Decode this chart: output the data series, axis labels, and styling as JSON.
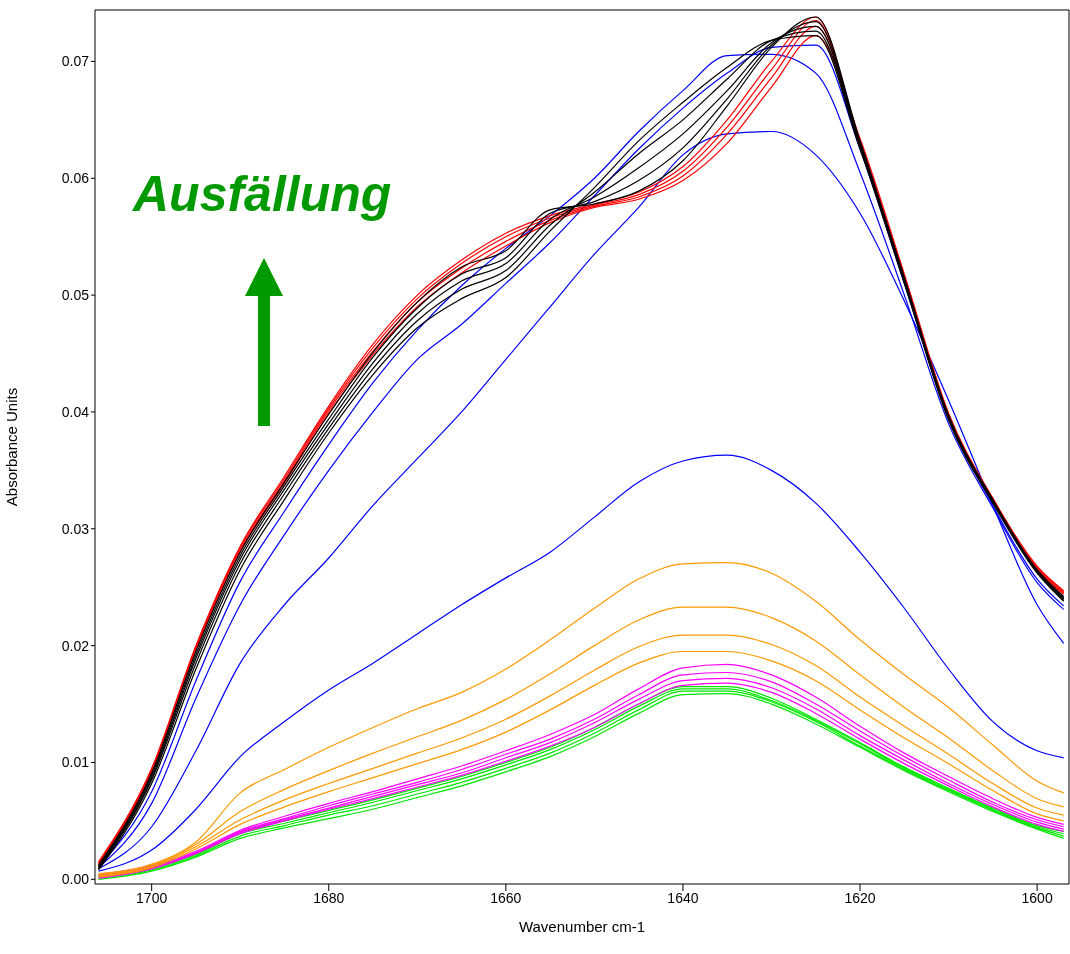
{
  "chart_data": {
    "type": "line",
    "xlabel": "Wavenumber cm-1",
    "ylabel": "Absorbance Units",
    "annotations": [
      "Ausfällung"
    ],
    "x": [
      1706,
      1700,
      1695,
      1690,
      1685,
      1680,
      1675,
      1670,
      1665,
      1660,
      1655,
      1650,
      1645,
      1640,
      1635,
      1630,
      1625,
      1620,
      1615,
      1610,
      1605,
      1600,
      1597
    ],
    "xlim": [
      1706.4,
      1596.4
    ],
    "xticks": [
      1700,
      1680,
      1660,
      1640,
      1620,
      1600
    ],
    "ylim": [
      -0.0004,
      0.0744
    ],
    "yticks": [
      {
        "value": 0,
        "label": "0.00"
      },
      {
        "value": 0.01,
        "label": "0.01"
      },
      {
        "value": 0.02,
        "label": "0.02"
      },
      {
        "value": 0.03,
        "label": "0.03"
      },
      {
        "value": 0.04,
        "label": "0.04"
      },
      {
        "value": 0.05,
        "label": "0.05"
      },
      {
        "value": 0.06,
        "label": "0.06"
      },
      {
        "value": 0.07,
        "label": "0.07"
      }
    ],
    "grid": false,
    "marker": "none",
    "line_style": "solid",
    "series": [
      {
        "color": "#00e600",
        "values": [
          0.0,
          0.0007,
          0.0019,
          0.0035,
          0.0044,
          0.0052,
          0.006,
          0.007,
          0.008,
          0.0092,
          0.0105,
          0.0122,
          0.0142,
          0.0158,
          0.0159,
          0.015,
          0.0133,
          0.0113,
          0.0093,
          0.0075,
          0.0058,
          0.0043,
          0.0035
        ]
      },
      {
        "color": "#00e600",
        "values": [
          0.0001,
          0.0008,
          0.002,
          0.0037,
          0.0046,
          0.0055,
          0.0063,
          0.0073,
          0.0083,
          0.0095,
          0.0108,
          0.0125,
          0.0145,
          0.0161,
          0.0161,
          0.0152,
          0.0135,
          0.0114,
          0.0094,
          0.0076,
          0.0059,
          0.0044,
          0.0037
        ]
      },
      {
        "color": "#00e600",
        "values": [
          0.0002,
          0.0009,
          0.0021,
          0.0039,
          0.0048,
          0.0057,
          0.0066,
          0.0076,
          0.0086,
          0.0098,
          0.0111,
          0.0128,
          0.0148,
          0.0163,
          0.0163,
          0.0153,
          0.0136,
          0.0116,
          0.0095,
          0.0077,
          0.006,
          0.0045,
          0.0039
        ]
      },
      {
        "color": "#00e600",
        "values": [
          0.0003,
          0.001,
          0.0022,
          0.004,
          0.005,
          0.0059,
          0.0068,
          0.0078,
          0.0088,
          0.01,
          0.0113,
          0.013,
          0.015,
          0.0165,
          0.0165,
          0.0155,
          0.0137,
          0.0117,
          0.0096,
          0.0078,
          0.0061,
          0.0046,
          0.0041
        ]
      },
      {
        "color": "#ff00ff",
        "values": [
          0.0001,
          0.0009,
          0.0022,
          0.0039,
          0.005,
          0.006,
          0.0069,
          0.0079,
          0.0089,
          0.0101,
          0.0114,
          0.013,
          0.015,
          0.0166,
          0.0168,
          0.016,
          0.0142,
          0.012,
          0.0099,
          0.008,
          0.0062,
          0.0047,
          0.0041
        ]
      },
      {
        "color": "#ff00ff",
        "values": [
          0.0002,
          0.001,
          0.0023,
          0.004,
          0.0051,
          0.0061,
          0.0071,
          0.0081,
          0.0091,
          0.0104,
          0.0117,
          0.0134,
          0.0154,
          0.017,
          0.0172,
          0.0164,
          0.0146,
          0.0123,
          0.0102,
          0.0082,
          0.0064,
          0.0049,
          0.0043
        ]
      },
      {
        "color": "#ff00ff",
        "values": [
          0.0003,
          0.0011,
          0.0023,
          0.0041,
          0.0052,
          0.0063,
          0.0073,
          0.0083,
          0.0094,
          0.0107,
          0.012,
          0.0137,
          0.0158,
          0.0175,
          0.0177,
          0.0169,
          0.015,
          0.0127,
          0.0105,
          0.0085,
          0.0066,
          0.0051,
          0.0045
        ]
      },
      {
        "color": "#ff00ff",
        "values": [
          0.0004,
          0.0012,
          0.0024,
          0.0042,
          0.0054,
          0.0065,
          0.0075,
          0.0086,
          0.0097,
          0.011,
          0.0124,
          0.0141,
          0.0163,
          0.0181,
          0.0184,
          0.0175,
          0.0156,
          0.0131,
          0.0108,
          0.0088,
          0.0069,
          0.0053,
          0.0047
        ]
      },
      {
        "color": "#ff9900",
        "values": [
          0.0002,
          0.001,
          0.0026,
          0.0047,
          0.0062,
          0.0075,
          0.0087,
          0.0099,
          0.0111,
          0.0126,
          0.0145,
          0.0166,
          0.0185,
          0.0195,
          0.0195,
          0.0187,
          0.017,
          0.0145,
          0.0121,
          0.0099,
          0.0076,
          0.0056,
          0.005
        ]
      },
      {
        "color": "#ff9900",
        "values": [
          0.0003,
          0.0011,
          0.0028,
          0.0051,
          0.0068,
          0.0082,
          0.0095,
          0.0108,
          0.0121,
          0.0137,
          0.0157,
          0.0179,
          0.0199,
          0.0209,
          0.0209,
          0.0201,
          0.0183,
          0.0156,
          0.0131,
          0.0107,
          0.0082,
          0.0061,
          0.0055
        ]
      },
      {
        "color": "#ff9900",
        "values": [
          0.0004,
          0.0012,
          0.003,
          0.0058,
          0.0077,
          0.0093,
          0.0108,
          0.0122,
          0.0136,
          0.0154,
          0.0176,
          0.02,
          0.0222,
          0.0233,
          0.0233,
          0.0224,
          0.0204,
          0.0175,
          0.0147,
          0.0121,
          0.0093,
          0.0069,
          0.0062
        ]
      },
      {
        "color": "#ff9900",
        "values": [
          0.0005,
          0.0013,
          0.0032,
          0.0074,
          0.0094,
          0.0113,
          0.013,
          0.0146,
          0.016,
          0.018,
          0.0205,
          0.0232,
          0.0257,
          0.027,
          0.0271,
          0.0262,
          0.0238,
          0.0205,
          0.0175,
          0.0147,
          0.0115,
          0.0084,
          0.0074
        ]
      },
      {
        "color": "#0000ff",
        "values": [
          0.0007,
          0.0025,
          0.006,
          0.0105,
          0.0135,
          0.0162,
          0.0185,
          0.021,
          0.0235,
          0.0258,
          0.028,
          0.031,
          0.034,
          0.0358,
          0.0363,
          0.035,
          0.0322,
          0.028,
          0.0232,
          0.018,
          0.0135,
          0.011,
          0.0104
        ]
      },
      {
        "color": "#0000ff",
        "values": [
          0.0009,
          0.0045,
          0.011,
          0.0185,
          0.0235,
          0.0275,
          0.032,
          0.036,
          0.04,
          0.0445,
          0.049,
          0.0535,
          0.0575,
          0.062,
          0.0638,
          0.064,
          0.062,
          0.057,
          0.0495,
          0.041,
          0.032,
          0.0235,
          0.0202
        ]
      },
      {
        "color": "#0000ff",
        "values": [
          0.001,
          0.0065,
          0.0155,
          0.0235,
          0.0295,
          0.035,
          0.04,
          0.0445,
          0.0475,
          0.051,
          0.0545,
          0.0585,
          0.0625,
          0.066,
          0.069,
          0.0712,
          0.0714,
          0.0625,
          0.051,
          0.0395,
          0.032,
          0.0257,
          0.0234
        ]
      },
      {
        "color": "#0000ff",
        "values": [
          0.0011,
          0.0075,
          0.017,
          0.0255,
          0.0315,
          0.0372,
          0.0425,
          0.047,
          0.0508,
          0.054,
          0.0568,
          0.06,
          0.064,
          0.0675,
          0.0705,
          0.0706,
          0.069,
          0.0605,
          0.05,
          0.039,
          0.0318,
          0.0254,
          0.0231
        ]
      },
      {
        "color": "#ff0000",
        "values": [
          0.0012,
          0.0092,
          0.0197,
          0.028,
          0.0339,
          0.0399,
          0.0449,
          0.049,
          0.0519,
          0.0542,
          0.0562,
          0.0575,
          0.0582,
          0.0598,
          0.063,
          0.0678,
          0.0722,
          0.0634,
          0.0518,
          0.0399,
          0.0326,
          0.0268,
          0.0247
        ]
      },
      {
        "color": "#ff0000",
        "values": [
          0.0013,
          0.0093,
          0.0198,
          0.0282,
          0.0341,
          0.0401,
          0.0452,
          0.0494,
          0.0523,
          0.0546,
          0.0564,
          0.0576,
          0.0584,
          0.0602,
          0.0638,
          0.0686,
          0.073,
          0.0632,
          0.0517,
          0.0398,
          0.0326,
          0.0267,
          0.0246
        ]
      },
      {
        "color": "#ff0000",
        "values": [
          0.0014,
          0.0094,
          0.0199,
          0.0284,
          0.0343,
          0.0403,
          0.0455,
          0.0497,
          0.0527,
          0.055,
          0.0566,
          0.0577,
          0.0586,
          0.0606,
          0.0644,
          0.0693,
          0.0735,
          0.063,
          0.0516,
          0.0397,
          0.0325,
          0.0266,
          0.0245
        ]
      },
      {
        "color": "#ff0000",
        "values": [
          0.0015,
          0.0095,
          0.02,
          0.0285,
          0.0345,
          0.0405,
          0.0458,
          0.05,
          0.053,
          0.0553,
          0.0568,
          0.0578,
          0.0588,
          0.061,
          0.065,
          0.07,
          0.0738,
          0.0628,
          0.0515,
          0.0396,
          0.0325,
          0.0265,
          0.0244
        ]
      },
      {
        "color": "#000000",
        "values": [
          0.0008,
          0.0082,
          0.018,
          0.0265,
          0.0325,
          0.0382,
          0.0432,
          0.0472,
          0.0497,
          0.0515,
          0.0555,
          0.0592,
          0.0632,
          0.0665,
          0.0695,
          0.0718,
          0.0722,
          0.0625,
          0.051,
          0.0393,
          0.0322,
          0.0262,
          0.0238
        ]
      },
      {
        "color": "#000000",
        "values": [
          0.0009,
          0.0085,
          0.0185,
          0.027,
          0.033,
          0.0386,
          0.0437,
          0.0478,
          0.0505,
          0.0521,
          0.056,
          0.0588,
          0.0621,
          0.065,
          0.0685,
          0.0718,
          0.0726,
          0.0627,
          0.0512,
          0.0394,
          0.0323,
          0.0263,
          0.0239
        ]
      },
      {
        "color": "#000000",
        "values": [
          0.001,
          0.0087,
          0.0189,
          0.0274,
          0.0334,
          0.039,
          0.0442,
          0.0484,
          0.0512,
          0.0527,
          0.0565,
          0.0584,
          0.0609,
          0.0638,
          0.0675,
          0.0716,
          0.073,
          0.0628,
          0.0513,
          0.0395,
          0.0324,
          0.0264,
          0.024
        ]
      },
      {
        "color": "#000000",
        "values": [
          0.0011,
          0.0089,
          0.0192,
          0.0277,
          0.0337,
          0.0394,
          0.0447,
          0.0489,
          0.0518,
          0.0532,
          0.057,
          0.058,
          0.0598,
          0.0626,
          0.0668,
          0.0714,
          0.0734,
          0.063,
          0.0514,
          0.0396,
          0.0324,
          0.0264,
          0.0241
        ]
      },
      {
        "color": "#000000",
        "values": [
          0.0012,
          0.0091,
          0.0195,
          0.028,
          0.034,
          0.0398,
          0.0451,
          0.0494,
          0.0524,
          0.0538,
          0.0573,
          0.0578,
          0.0589,
          0.0615,
          0.0662,
          0.0712,
          0.0738,
          0.0632,
          0.0515,
          0.0397,
          0.0325,
          0.0265,
          0.0242
        ]
      }
    ]
  }
}
